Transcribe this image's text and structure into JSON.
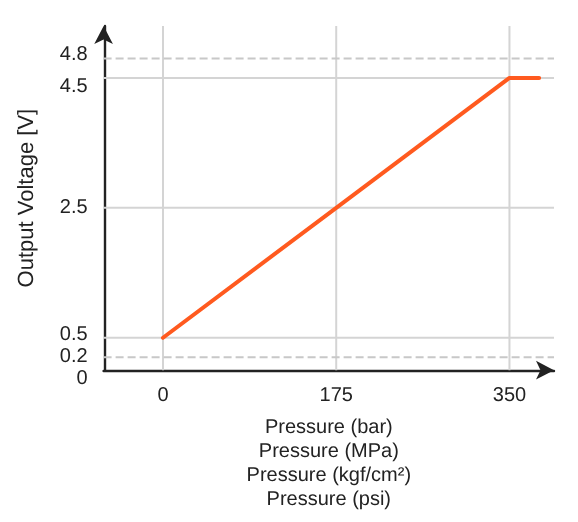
{
  "chart_data": {
    "type": "line",
    "xlabel": "Pressure (bar)\nPressure (MPa)\nPressure (kgf/cm²)\nPressure (psi)",
    "ylabel": "Output Voltage [V]",
    "x": [
      0,
      175,
      350,
      380
    ],
    "series": [
      {
        "color": "#ff5a1f",
        "values": [
          0.5,
          2.5,
          4.5,
          4.5
        ]
      }
    ],
    "xlim": [
      -60,
      395
    ],
    "xticks": [
      0,
      175,
      350
    ],
    "ylim": [
      0,
      5.3
    ],
    "yticks": [
      0,
      0.2,
      0.5,
      2.5,
      4.5,
      4.8
    ],
    "marker": "none",
    "line_style": "solid",
    "ref_lines": [
      {
        "axis": "y",
        "value": 0.2,
        "label": null,
        "color": "#c8c8c8",
        "line_style": "dashed"
      },
      {
        "axis": "y",
        "value": 0.5,
        "label": null,
        "color": "#d4d4d4",
        "line_style": "solid"
      },
      {
        "axis": "y",
        "value": 2.5,
        "label": null,
        "color": "#d4d4d4",
        "line_style": "solid"
      },
      {
        "axis": "y",
        "value": 4.5,
        "label": null,
        "color": "#d4d4d4",
        "line_style": "solid"
      },
      {
        "axis": "y",
        "value": 4.8,
        "label": null,
        "color": "#c8c8c8",
        "line_style": "dashed"
      },
      {
        "axis": "x",
        "value": 0,
        "label": null,
        "color": "#d4d4d4",
        "line_style": "solid"
      },
      {
        "axis": "x",
        "value": 175,
        "label": null,
        "color": "#d4d4d4",
        "line_style": "solid"
      },
      {
        "axis": "x",
        "value": 350,
        "label": null,
        "color": "#d4d4d4",
        "line_style": "solid"
      }
    ]
  }
}
